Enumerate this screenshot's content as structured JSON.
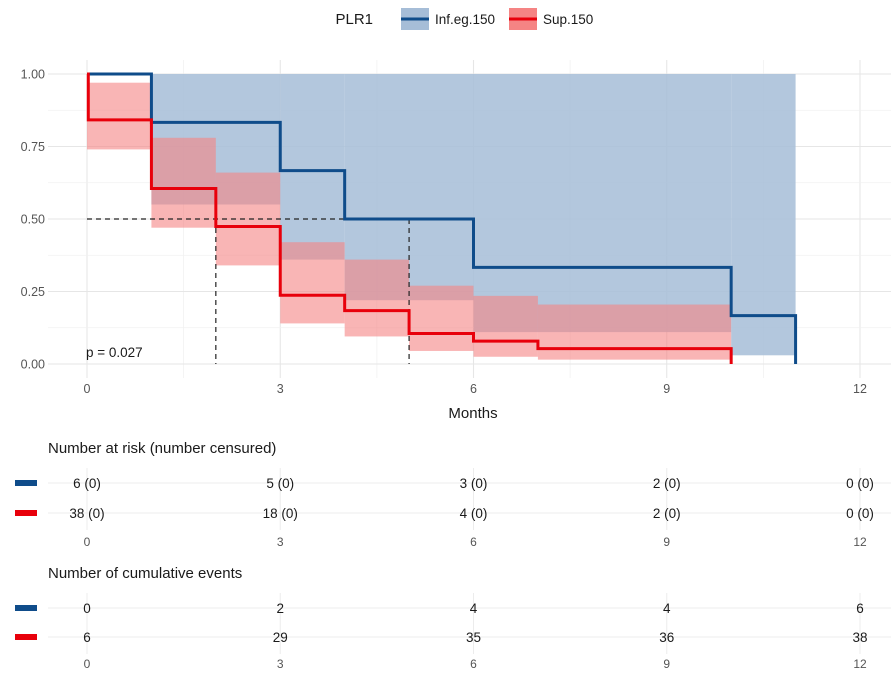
{
  "chart_data": {
    "type": "line",
    "subtype": "kaplan-meier step survival curves with confidence bands",
    "legend": {
      "title": "PLR1",
      "position": "top",
      "entries": [
        "Inf.eg.150",
        "Sup.150"
      ]
    },
    "xlabel": "Months",
    "ylabel": "",
    "xlim": [
      0,
      12
    ],
    "ylim": [
      0,
      1
    ],
    "x_ticks": [
      0,
      3,
      6,
      9,
      12
    ],
    "y_ticks": [
      0,
      0.25,
      0.5,
      0.75,
      1
    ],
    "y_tick_labels": [
      "0.00",
      "0.25",
      "0.50",
      "0.75",
      "1.00"
    ],
    "grid": true,
    "p_value_text": "p = 0.027",
    "median_lines": {
      "y": 0.5,
      "x": [
        2,
        5
      ]
    },
    "series": [
      {
        "name": "Inf.eg.150",
        "color": "#0f4c8a",
        "band_color": "#a6bdd7",
        "steps": [
          [
            0,
            1.0
          ],
          [
            1,
            0.833
          ],
          [
            3,
            0.667
          ],
          [
            4,
            0.5
          ],
          [
            6,
            0.333
          ],
          [
            10,
            0.167
          ],
          [
            11,
            0.0
          ]
        ],
        "ci_steps": [
          [
            0,
            1.0,
            1.0
          ],
          [
            1,
            0.55,
            1.0
          ],
          [
            3,
            0.36,
            1.0
          ],
          [
            4,
            0.22,
            1.0
          ],
          [
            6,
            0.11,
            1.0
          ],
          [
            10,
            0.03,
            1.0
          ],
          [
            11,
            0.03,
            1.0
          ]
        ],
        "end_x": 11
      },
      {
        "name": "Sup.150",
        "color": "#e8000b",
        "band_color": "#f58484",
        "steps": [
          [
            0,
            1.0
          ],
          [
            0.02,
            0.842
          ],
          [
            1,
            0.605
          ],
          [
            2,
            0.474
          ],
          [
            3,
            0.237
          ],
          [
            4,
            0.184
          ],
          [
            5,
            0.105
          ],
          [
            6,
            0.079
          ],
          [
            7,
            0.053
          ],
          [
            10,
            0.0
          ]
        ],
        "ci_steps": [
          [
            0,
            0.74,
            0.97
          ],
          [
            1,
            0.47,
            0.78
          ],
          [
            2,
            0.34,
            0.66
          ],
          [
            3,
            0.14,
            0.42
          ],
          [
            4,
            0.095,
            0.36
          ],
          [
            5,
            0.045,
            0.27
          ],
          [
            6,
            0.025,
            0.235
          ],
          [
            7,
            0.015,
            0.205
          ],
          [
            10,
            0.015,
            0.205
          ]
        ],
        "end_x": 10
      }
    ],
    "risk_table": {
      "title": "Number at risk (number censured)",
      "times": [
        0,
        3,
        6,
        9,
        12
      ],
      "rows": [
        {
          "name": "Inf.eg.150",
          "color": "#0f4c8a",
          "values": [
            "6 (0)",
            "5 (0)",
            "3 (0)",
            "2 (0)",
            "0 (0)"
          ]
        },
        {
          "name": "Sup.150",
          "color": "#e8000b",
          "values": [
            "38 (0)",
            "18 (0)",
            "4 (0)",
            "2 (0)",
            "0 (0)"
          ]
        }
      ]
    },
    "events_table": {
      "title": "Number of cumulative events",
      "times": [
        0,
        3,
        6,
        9,
        12
      ],
      "rows": [
        {
          "name": "Inf.eg.150",
          "color": "#0f4c8a",
          "values": [
            "0",
            "2",
            "4",
            "4",
            "6"
          ]
        },
        {
          "name": "Sup.150",
          "color": "#e8000b",
          "values": [
            "6",
            "29",
            "35",
            "36",
            "38"
          ]
        }
      ]
    }
  }
}
